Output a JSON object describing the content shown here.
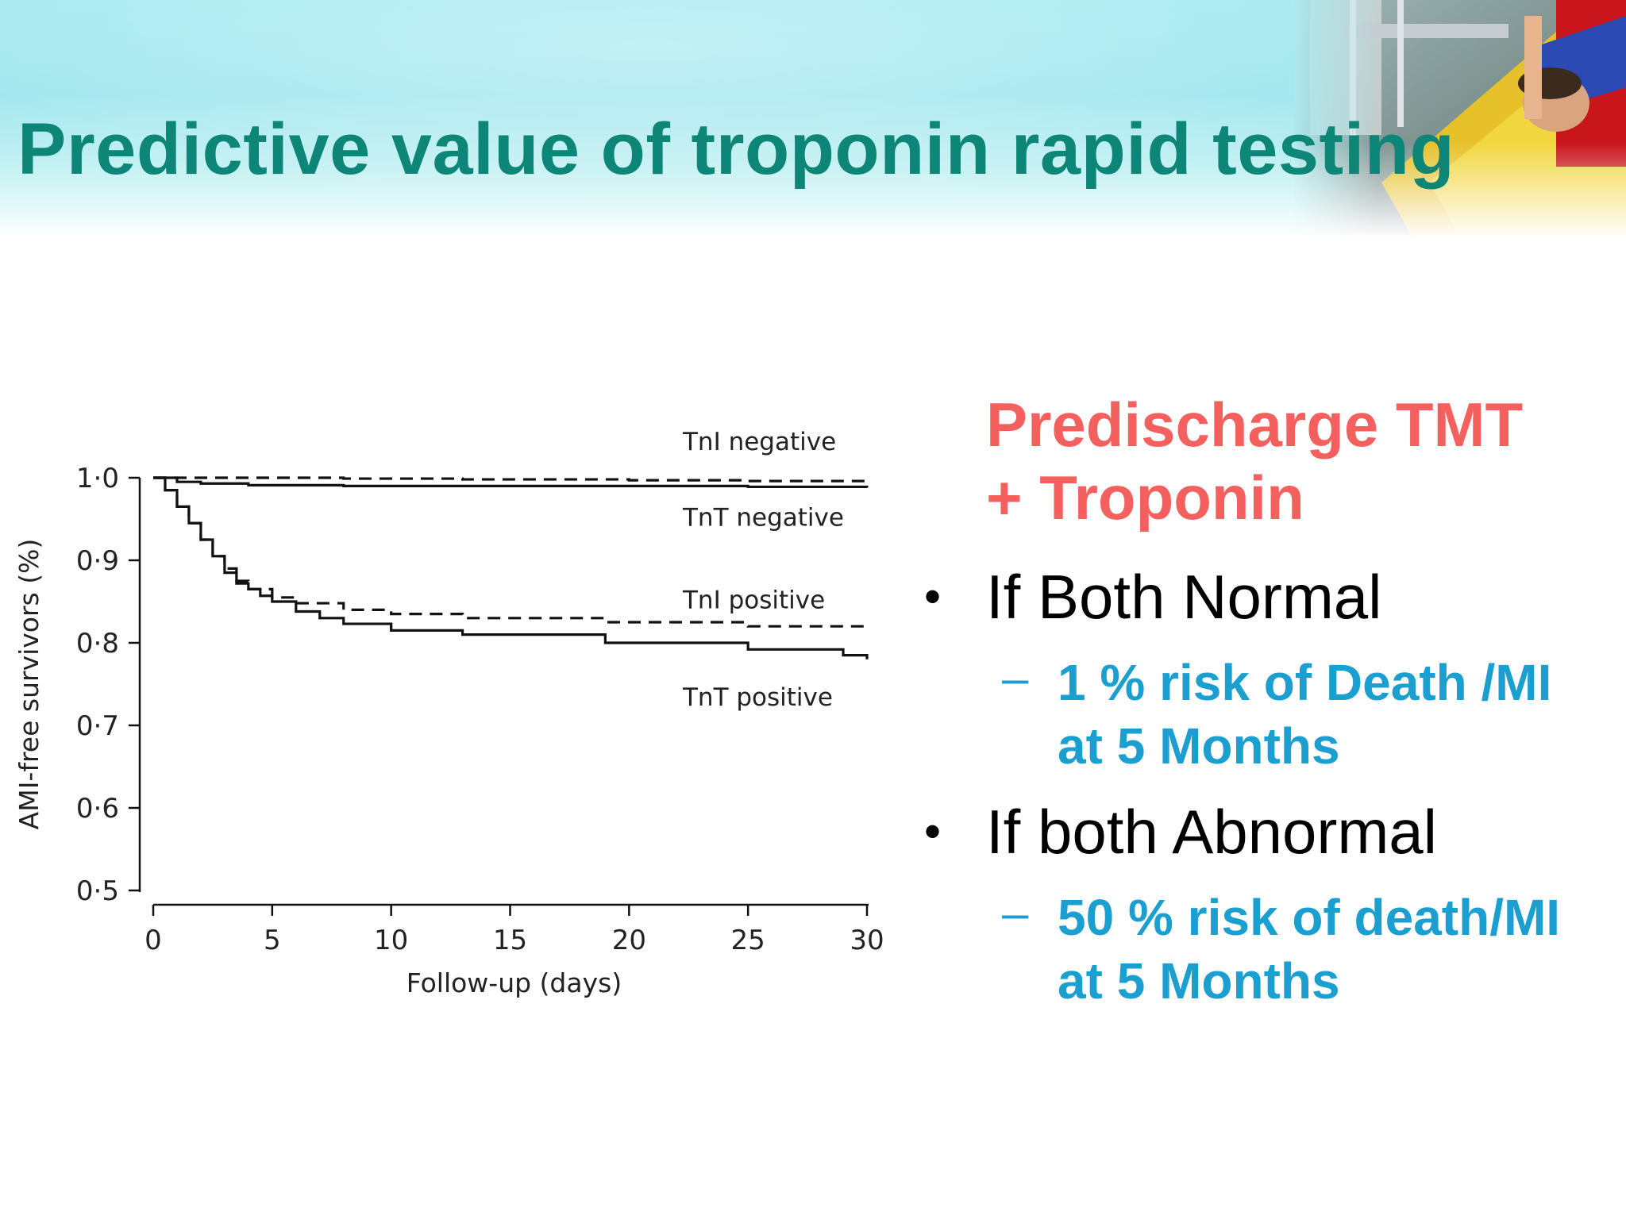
{
  "slide": {
    "title": "Predictive value of troponin rapid testing",
    "colors": {
      "title": "#0d8577",
      "heading": "#f4605d",
      "sub_bullet": "#1a9fd0",
      "banner": "#a6eaf0"
    }
  },
  "right_panel": {
    "heading_line1": "Predischarge TMT",
    "heading_line2": "+  Troponin",
    "bullets": [
      {
        "text": "If Both  Normal",
        "sub_line1": "1 % risk of Death /MI",
        "sub_line2": "at 5 Months"
      },
      {
        "text": "If both Abnormal",
        "sub_line1": "50 % risk of death/MI",
        "sub_line2": "at 5 Months"
      }
    ],
    "bullet_symbol": "•",
    "sub_symbol": "–"
  },
  "chart_data": {
    "type": "line",
    "title": "",
    "xlabel": "Follow-up (days)",
    "ylabel": "AMI-free survivors (%)",
    "xlim": [
      0,
      30
    ],
    "ylim": [
      0.5,
      1.0
    ],
    "xticks": [
      0,
      5,
      10,
      15,
      20,
      25,
      30
    ],
    "xtick_labels": [
      "0",
      "5",
      "10",
      "15",
      "20",
      "25",
      "30"
    ],
    "yticks": [
      0.5,
      0.6,
      0.7,
      0.8,
      0.9,
      1.0
    ],
    "ytick_labels": [
      "0·5",
      "0·6",
      "0·7",
      "0·8",
      "0·9",
      "1·0"
    ],
    "series": [
      {
        "name": "TnI negative",
        "style": "dashed",
        "x": [
          0,
          2,
          8,
          13,
          20,
          25,
          30
        ],
        "y": [
          1.0,
          1.0,
          0.999,
          0.998,
          0.997,
          0.996,
          0.995
        ]
      },
      {
        "name": "TnT negative",
        "style": "solid",
        "x": [
          0,
          1,
          2,
          4,
          8,
          13,
          20,
          25,
          30
        ],
        "y": [
          1.0,
          0.995,
          0.993,
          0.991,
          0.99,
          0.99,
          0.99,
          0.989,
          0.988
        ]
      },
      {
        "name": "TnI positive",
        "style": "dashed",
        "x": [
          0,
          0.5,
          1,
          1.5,
          2,
          2.5,
          3,
          3.5,
          4,
          5,
          6,
          8,
          10,
          13,
          19,
          25,
          30
        ],
        "y": [
          1.0,
          0.985,
          0.965,
          0.945,
          0.925,
          0.905,
          0.89,
          0.875,
          0.865,
          0.855,
          0.848,
          0.84,
          0.835,
          0.83,
          0.825,
          0.82,
          0.815
        ]
      },
      {
        "name": "TnT positive",
        "style": "solid",
        "x": [
          0,
          0.5,
          1,
          1.5,
          2,
          2.5,
          3,
          3.5,
          4,
          4.5,
          5,
          6,
          7,
          8,
          10,
          13,
          19,
          25,
          29,
          30
        ],
        "y": [
          1.0,
          0.985,
          0.965,
          0.945,
          0.925,
          0.905,
          0.885,
          0.872,
          0.865,
          0.857,
          0.85,
          0.838,
          0.83,
          0.823,
          0.815,
          0.81,
          0.8,
          0.792,
          0.785,
          0.78
        ]
      }
    ],
    "legend": "inline-right"
  }
}
